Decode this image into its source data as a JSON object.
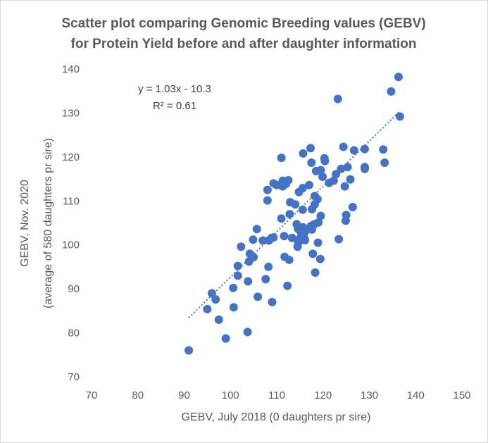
{
  "chart_data": {
    "type": "scatter",
    "title": [
      "Scatter plot comparing Genomic Breeding values (GEBV)",
      "for Protein Yield before and after daughter information"
    ],
    "xlabel": "GEBV, July 2018 (0 daughters pr sire)",
    "ylabel": [
      "GEBV, Nov. 2020",
      "(average of 580 daughters pr sire)"
    ],
    "xlim": [
      70,
      150
    ],
    "ylim": [
      70,
      140
    ],
    "xticks": [
      70,
      80,
      90,
      100,
      110,
      120,
      130,
      140,
      150
    ],
    "yticks": [
      70,
      80,
      90,
      100,
      110,
      120,
      130,
      140
    ],
    "grid": false,
    "marker_color": "#4472C4",
    "trendline": {
      "type": "linear",
      "slope": 1.03,
      "intercept": -10.3,
      "x_range": [
        91,
        136.5
      ],
      "style": "dotted",
      "equation": "y = 1.03x - 10.3",
      "r2": "R² = 0.61"
    },
    "points": [
      [
        91,
        76
      ],
      [
        95,
        85.4
      ],
      [
        96,
        89
      ],
      [
        96.8,
        87.6
      ],
      [
        97.5,
        83
      ],
      [
        99,
        78.7
      ],
      [
        100.6,
        90.2
      ],
      [
        100.7,
        85.8
      ],
      [
        101.6,
        93
      ],
      [
        101.6,
        95.2
      ],
      [
        102.3,
        99.6
      ],
      [
        103.7,
        80.2
      ],
      [
        103.8,
        91.7
      ],
      [
        104,
        96.2
      ],
      [
        104.2,
        98
      ],
      [
        104.9,
        101.2
      ],
      [
        105,
        97.2
      ],
      [
        105.7,
        103.6
      ],
      [
        105.9,
        88.2
      ],
      [
        107,
        101
      ],
      [
        107.6,
        92.2
      ],
      [
        108,
        112.5
      ],
      [
        108,
        110.1
      ],
      [
        108.2,
        95
      ],
      [
        108.3,
        101
      ],
      [
        108.9,
        101.6
      ],
      [
        109,
        87
      ],
      [
        109.3,
        114
      ],
      [
        109.3,
        101.7
      ],
      [
        110,
        113.6
      ],
      [
        111,
        106
      ],
      [
        111,
        119.8
      ],
      [
        111.3,
        114.6
      ],
      [
        111.3,
        113.3
      ],
      [
        111.6,
        102
      ],
      [
        111.7,
        97.3
      ],
      [
        112,
        113.9
      ],
      [
        112.3,
        90.7
      ],
      [
        112.5,
        114.7
      ],
      [
        112.7,
        96.6
      ],
      [
        112.8,
        107
      ],
      [
        112.9,
        109.7
      ],
      [
        113.3,
        101.6
      ],
      [
        114,
        109.2
      ],
      [
        114.3,
        104.7
      ],
      [
        114.5,
        99.6
      ],
      [
        114.6,
        103.7
      ],
      [
        114.7,
        100.6
      ],
      [
        114.8,
        112
      ],
      [
        114.9,
        103.4
      ],
      [
        115,
        101.4
      ],
      [
        115.3,
        102.7
      ],
      [
        115.6,
        112.9
      ],
      [
        115.6,
        108
      ],
      [
        115.7,
        120.8
      ],
      [
        115.7,
        104
      ],
      [
        115.9,
        101.6
      ],
      [
        116,
        103.5
      ],
      [
        116.1,
        103
      ],
      [
        116.1,
        101.1
      ],
      [
        117,
        113.6
      ],
      [
        117.3,
        122
      ],
      [
        117.4,
        104.3
      ],
      [
        117.5,
        118.7
      ],
      [
        117.6,
        108.1
      ],
      [
        117.6,
        103.5
      ],
      [
        117.8,
        98
      ],
      [
        118.1,
        104.7
      ],
      [
        118.2,
        111.1
      ],
      [
        118.2,
        109.2
      ],
      [
        118.3,
        93.7
      ],
      [
        118.5,
        116.8
      ],
      [
        118.8,
        110.4
      ],
      [
        118.9,
        100.5
      ],
      [
        119,
        105.1
      ],
      [
        119.4,
        96.8
      ],
      [
        119.5,
        106.6
      ],
      [
        119.5,
        117
      ],
      [
        119.9,
        115.5
      ],
      [
        120.3,
        119.7
      ],
      [
        120.4,
        119.1
      ],
      [
        121.3,
        114.1
      ],
      [
        122.3,
        114.6
      ],
      [
        122.8,
        116.1
      ],
      [
        123.2,
        133.2
      ],
      [
        123.4,
        101.3
      ],
      [
        123.9,
        117.3
      ],
      [
        124.4,
        122.3
      ],
      [
        124.7,
        113.3
      ],
      [
        124.9,
        105.5
      ],
      [
        125,
        106.8
      ],
      [
        125.3,
        117.7
      ],
      [
        125.9,
        114.9
      ],
      [
        126.4,
        108.6
      ],
      [
        126.7,
        121.5
      ],
      [
        129,
        121.8
      ],
      [
        129,
        117.7
      ],
      [
        129,
        117.3
      ],
      [
        133,
        121.7
      ],
      [
        133.3,
        118.7
      ],
      [
        134.7,
        134.9
      ],
      [
        136.3,
        138.2
      ],
      [
        136.6,
        129.2
      ]
    ]
  }
}
